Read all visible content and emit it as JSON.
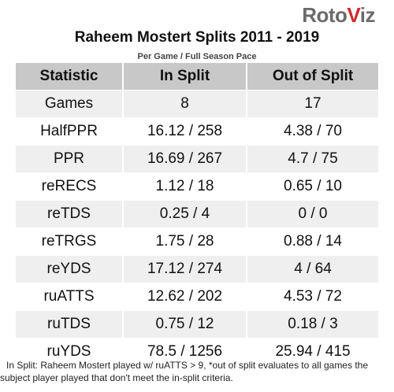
{
  "logo": {
    "text_a": "Roto",
    "text_b": "V",
    "text_c": "iz"
  },
  "title": "Raheem Mostert Splits 2011 - 2019",
  "subtitle": "Per Game / Full Season Pace",
  "table": {
    "headers": [
      "Statistic",
      "In Split",
      "Out of Split"
    ],
    "rows": [
      [
        "Games",
        "8",
        "17"
      ],
      [
        "HalfPPR",
        "16.12 / 258",
        "4.38 / 70"
      ],
      [
        "PPR",
        "16.69 / 267",
        "4.7 / 75"
      ],
      [
        "reRECS",
        "1.12 / 18",
        "0.65 / 10"
      ],
      [
        "reTDS",
        "0.25 / 4",
        "0 / 0"
      ],
      [
        "reTRGS",
        "1.75 / 28",
        "0.88 / 14"
      ],
      [
        "reYDS",
        "17.12 / 274",
        "4 / 64"
      ],
      [
        "ruATTS",
        "12.62 / 202",
        "4.53 / 72"
      ],
      [
        "ruTDS",
        "0.75 / 12",
        "0.18 / 3"
      ],
      [
        "ruYDS",
        "78.5 / 1256",
        "25.94 / 415"
      ]
    ]
  },
  "footnote": "In Split: Raheem Mostert played w/ ruATTS > 9,  *out of split evaluates to all games the subject player played that don't meet the in-split criteria.",
  "colors": {
    "header_bg": "#c8c8c8",
    "stripe_bg": "#efefef",
    "logo_gray": "#6b6b6b",
    "logo_red": "#d3282f"
  }
}
